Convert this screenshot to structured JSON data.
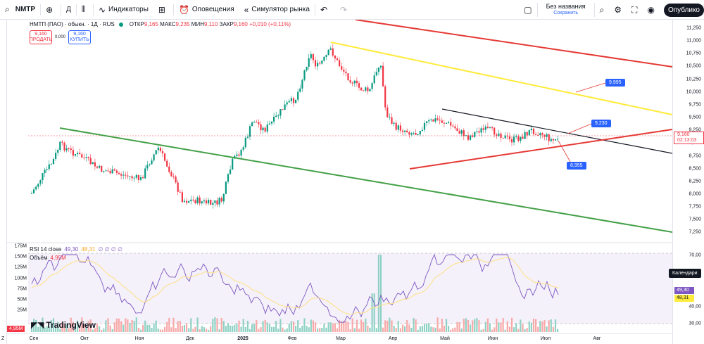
{
  "toolbar": {
    "symbol": "NMTP",
    "interval": "Д",
    "indicators": "Индикаторы",
    "alerts": "Оповещения",
    "replay": "Симулятор рынка",
    "layout_name": "Без названия",
    "layout_saved": "Сохранить",
    "publish": "Опублико"
  },
  "legend": {
    "title": "НМТП (ПАО) · обыкн. · 1Д · RUS",
    "open_label": "ОТКР",
    "open": "9,165",
    "high_label": "МАКС",
    "high": "9,235",
    "low_label": "МИН",
    "low": "9,110",
    "close_label": "ЗАКР",
    "close": "9,160",
    "change": "+0,010 (+0,11%)"
  },
  "trade": {
    "sell_price": "9,160",
    "sell_label": "ПРОДАТЬ",
    "spread": "0,000",
    "buy_price": "9,160",
    "buy_label": "КУПИТЬ"
  },
  "price_axis": [
    "11,250",
    "11,000",
    "10,750",
    "10,500",
    "10,250",
    "10,000",
    "9,750",
    "9,500",
    "9,250",
    "9,000",
    "8,750",
    "8,500",
    "8,250",
    "8,000",
    "7,750",
    "7,500",
    "7,250"
  ],
  "current_price": {
    "value": "9,160",
    "countdown": "02:13:03"
  },
  "callouts": {
    "upper": "9,995",
    "mid": "9,230",
    "lower": "8,955"
  },
  "rsi": {
    "label": "RSI 14 close",
    "value1": "49,30",
    "value2": "48,31",
    "extra": "∅ ∅ ∅ ∅",
    "tag1": "49,30",
    "tag2": "48,31"
  },
  "volume": {
    "label": "Объём",
    "value": "4,95M",
    "badge": "4,95M"
  },
  "volume_axis": [
    "175M",
    "150M",
    "125M",
    "100M",
    "75M",
    "50M",
    "25M"
  ],
  "rsi_axis": [
    "70,00",
    "60,00",
    "40,00",
    "30,00"
  ],
  "calendar_tip": "Календари",
  "time_axis": [
    "Сен",
    "Окт",
    "Ноя",
    "Дек",
    "2025",
    "Фев",
    "Мар",
    "Апр",
    "Май",
    "Июн",
    "Июл",
    "Авг"
  ],
  "brand": "TradingView",
  "z_label": "Z",
  "colors": {
    "up": "#089981",
    "down": "#f23645",
    "accent": "#2962ff",
    "rsi": "#7e57c2"
  }
}
